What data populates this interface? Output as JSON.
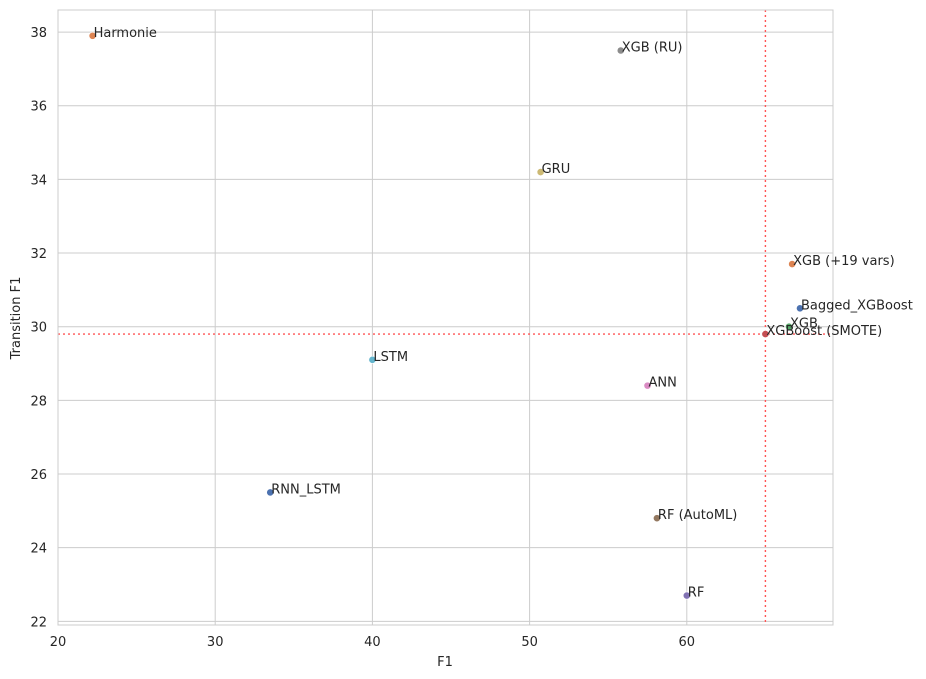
{
  "chart_data": {
    "type": "scatter",
    "title": "",
    "xlabel": "F1",
    "ylabel": "Transition F1",
    "xlim": [
      20,
      69.3
    ],
    "ylim": [
      21.9,
      38.6
    ],
    "xticks": [
      20,
      30,
      40,
      50,
      60
    ],
    "yticks": [
      22,
      24,
      26,
      28,
      30,
      32,
      34,
      36,
      38
    ],
    "grid": true,
    "reference_lines": {
      "vertical_x": 65.0,
      "horizontal_y": 29.8,
      "color": "#ff5555"
    },
    "points": [
      {
        "label": "Harmonie",
        "x": 22.2,
        "y": 37.9,
        "color": "#dd8452"
      },
      {
        "label": "XGB (RU)",
        "x": 55.8,
        "y": 37.5,
        "color": "#8c8c8c"
      },
      {
        "label": "GRU",
        "x": 50.7,
        "y": 34.2,
        "color": "#ccb974"
      },
      {
        "label": "XGB (+19 vars)",
        "x": 66.7,
        "y": 31.7,
        "color": "#dd8452"
      },
      {
        "label": "Bagged_XGBoost",
        "x": 67.2,
        "y": 30.5,
        "color": "#4c72b0"
      },
      {
        "label": "XGB",
        "x": 66.5,
        "y": 30.0,
        "color": "#55a868"
      },
      {
        "label": "XGBoost (SMOTE)",
        "x": 65.0,
        "y": 29.8,
        "color": "#c44e52"
      },
      {
        "label": "LSTM",
        "x": 40.0,
        "y": 29.1,
        "color": "#64b5cd"
      },
      {
        "label": "ANN",
        "x": 57.5,
        "y": 28.4,
        "color": "#da8bc3"
      },
      {
        "label": "RNN_LSTM",
        "x": 33.5,
        "y": 25.5,
        "color": "#4c72b0"
      },
      {
        "label": "RF (AutoML)",
        "x": 58.1,
        "y": 24.8,
        "color": "#937860"
      },
      {
        "label": "RF",
        "x": 60.0,
        "y": 22.7,
        "color": "#8172b3"
      }
    ]
  }
}
